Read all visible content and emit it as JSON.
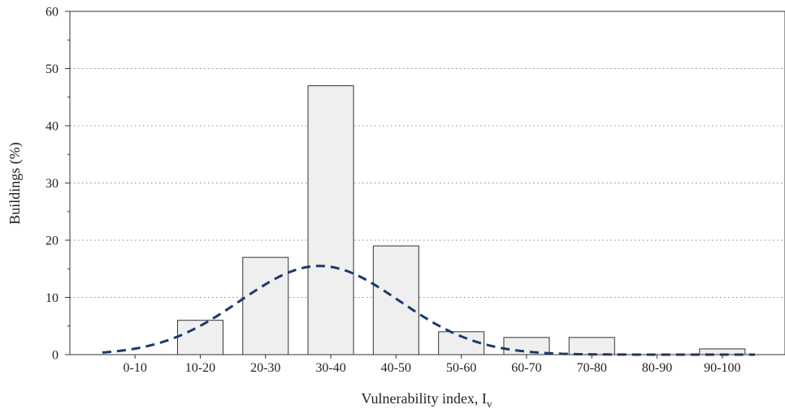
{
  "chart_data": {
    "type": "bar",
    "categories": [
      "0-10",
      "10-20",
      "20-30",
      "30-40",
      "40-50",
      "50-60",
      "60-70",
      "70-80",
      "80-90",
      "90-100"
    ],
    "values": [
      0,
      6,
      17,
      47,
      19,
      4,
      3,
      3,
      0,
      1
    ],
    "xlabel": "Vulnerability index, I",
    "xlabel_subscript": "v",
    "ylabel": "Buildings (%)",
    "ylim": [
      0,
      60
    ],
    "yticks": [
      0,
      10,
      20,
      30,
      40,
      50,
      60
    ],
    "grid": "horizontal-dotted",
    "bar_color": "#efefef",
    "overlay_curve": {
      "type": "dashed-normal-fit",
      "color": "#1b3a6b",
      "mean": 33.3,
      "sd": 12.2,
      "peak": 15.5,
      "x_range": [
        0,
        100
      ]
    }
  }
}
